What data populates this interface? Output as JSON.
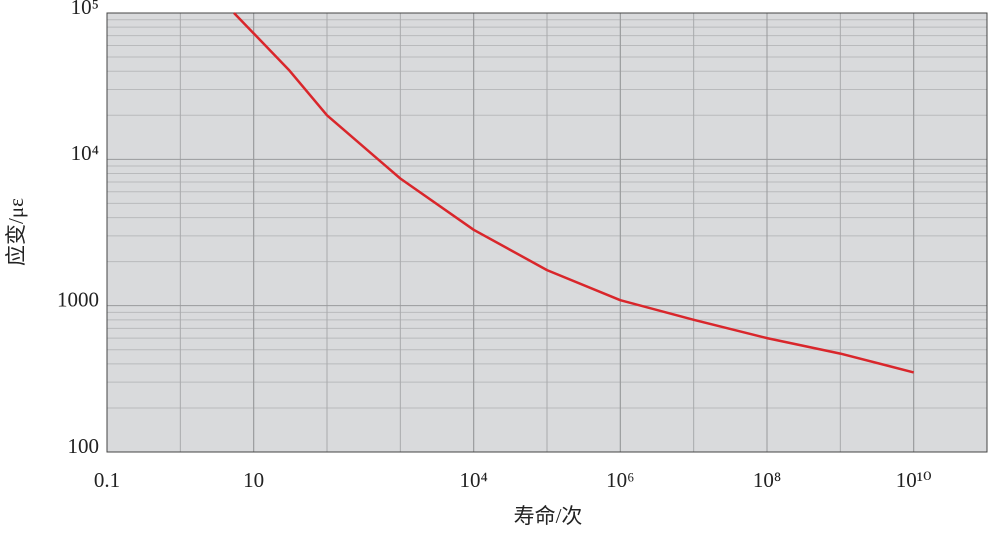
{
  "chart_data": {
    "type": "line",
    "log_x": true,
    "log_y": true,
    "grid": true,
    "xlabel": "寿命/次",
    "ylabel": "应变/με",
    "x": [
      5.4,
      30,
      100,
      1000,
      10000,
      100000,
      1000000,
      10000000,
      100000000,
      1000000000,
      10000000000
    ],
    "values": [
      100000,
      41000,
      20000,
      7400,
      3300,
      1750,
      1090,
      800,
      600,
      470,
      350
    ],
    "color": "#d9262b",
    "xlim": [
      0.1,
      100000000000
    ],
    "xticks": [
      0.1,
      10,
      {
        "value": 10000,
        "label": "10⁴"
      },
      {
        "value": 1000000,
        "label": "10⁶"
      },
      {
        "value": 100000000,
        "label": "10⁸"
      },
      {
        "value": 10000000000,
        "label": "10¹⁰"
      }
    ],
    "ylim": [
      100,
      100000
    ],
    "yticks": [
      100,
      1000,
      {
        "value": 10000,
        "label": "10⁴"
      },
      {
        "value": 100000,
        "label": "10⁵"
      }
    ]
  }
}
